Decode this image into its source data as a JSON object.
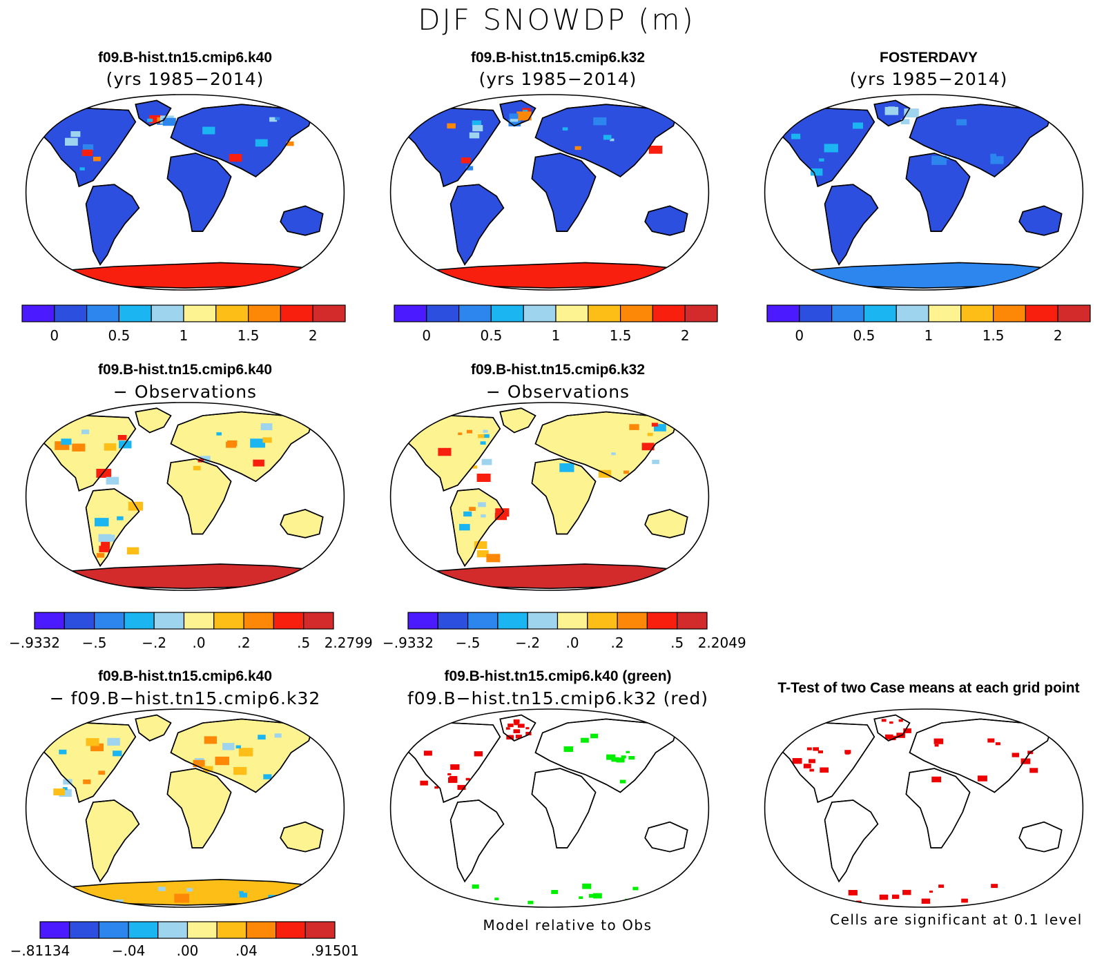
{
  "title": "DJF SNOWDP (m)",
  "palettes": {
    "seq": [
      "#4b1aff",
      "#2d4fe0",
      "#2c86ee",
      "#1bb6f2",
      "#9fd4ee",
      "#fdf391",
      "#fdbf17",
      "#fd8808",
      "#f81f0f",
      "#d32b2b"
    ],
    "ocean": "#ffffff",
    "land_outline": "#000000"
  },
  "panels": [
    {
      "id": "k40",
      "title": "f09.B-hist.tn15.cmip6.k40",
      "subtitle": "(yrs 1985−2014)",
      "fill": "#2d4fe0",
      "polar": "#f81f0f",
      "accents": "seq"
    },
    {
      "id": "k32",
      "title": "f09.B-hist.tn15.cmip6.k32",
      "subtitle": "(yrs 1985−2014)",
      "fill": "#2d4fe0",
      "polar": "#f81f0f",
      "accents": "seq"
    },
    {
      "id": "obs",
      "title": "FOSTERDAVY",
      "subtitle": "(yrs 1985−2014)",
      "fill": "#2d4fe0",
      "polar": "#2c86ee",
      "accents": "obs"
    },
    {
      "id": "k40-obs",
      "title": "f09.B-hist.tn15.cmip6.k40",
      "subtitle": "− Observations",
      "fill": "#fdf391",
      "polar": "#d32b2b",
      "accents": "diff"
    },
    {
      "id": "k32-obs",
      "title": "f09.B-hist.tn15.cmip6.k32",
      "subtitle": "− Observations",
      "fill": "#fdf391",
      "polar": "#d32b2b",
      "accents": "diff"
    },
    {
      "id": "k40-k32",
      "title": "f09.B-hist.tn15.cmip6.k40",
      "subtitle": "− f09.B−hist.tn15.cmip6.k32",
      "fill": "#fdf391",
      "polar": "#fdbf17",
      "accents": "diff2"
    },
    {
      "id": "rel",
      "title": "f09.B-hist.tn15.cmip6.k40 (green)",
      "subtitle": "f09.B−hist.tn15.cmip6.k32 (red)",
      "fill": "#ffffff",
      "polar": "#ffffff",
      "accents": "rel"
    },
    {
      "id": "ttest",
      "title": "T-Test of two Case means at each grid point",
      "subtitle": "",
      "fill": "#ffffff",
      "polar": "#ffffff",
      "accents": "ttest"
    }
  ],
  "colorbars": [
    {
      "labels": [
        "0",
        "0.5",
        "1",
        "1.5",
        "2"
      ]
    },
    {
      "labels": [
        "0",
        "0.5",
        "1",
        "1.5",
        "2"
      ]
    },
    {
      "labels": [
        "0",
        "0.5",
        "1",
        "1.5",
        "2"
      ]
    },
    {
      "labels": [
        "−.9332",
        "−.5",
        "−.2",
        ".0",
        ".2",
        ".5",
        "2.2799"
      ]
    },
    {
      "labels": [
        "−.9332",
        "−.5",
        "−.2",
        ".0",
        ".2",
        ".5",
        "2.2049"
      ]
    },
    {
      "labels": [
        "−.81134",
        "−.04",
        ".00",
        ".04",
        ".91501"
      ]
    }
  ],
  "footnotes": {
    "relative": "Model relative to Obs",
    "significance": "Cells are significant at 0.1 level"
  },
  "chart_data": {
    "type": "heatmap",
    "title": "DJF SNOWDP (m)",
    "variable": "SNOWDP",
    "units": "m",
    "season": "DJF",
    "projection": "Robinson world maps",
    "panels": [
      {
        "name": "f09.B-hist.tn15.cmip6.k40",
        "period": "1985−2014",
        "colorbar_ticks": [
          0,
          0.5,
          1,
          1.5,
          2
        ]
      },
      {
        "name": "f09.B-hist.tn15.cmip6.k32",
        "period": "1985−2014",
        "colorbar_ticks": [
          0,
          0.5,
          1,
          1.5,
          2
        ]
      },
      {
        "name": "FOSTERDAVY",
        "period": "1985−2014",
        "colorbar_ticks": [
          0,
          0.5,
          1,
          1.5,
          2
        ]
      },
      {
        "name": "f09.B-hist.tn15.cmip6.k40 − Observations",
        "colorbar_ticks": [
          -0.9332,
          -0.5,
          -0.2,
          0.0,
          0.2,
          0.5,
          2.2799
        ]
      },
      {
        "name": "f09.B-hist.tn15.cmip6.k32 − Observations",
        "colorbar_ticks": [
          -0.9332,
          -0.5,
          -0.2,
          0.0,
          0.2,
          0.5,
          2.2049
        ]
      },
      {
        "name": "f09.B-hist.tn15.cmip6.k40 − f09.B-hist.tn15.cmip6.k32",
        "colorbar_ticks": [
          -0.81134,
          -0.04,
          0.0,
          0.04,
          0.91501
        ]
      },
      {
        "name": "f09.B-hist.tn15.cmip6.k40 (green) / f09.B-hist.tn15.cmip6.k32 (red)",
        "note": "Model relative to Obs"
      },
      {
        "name": "T-Test of two Case means at each grid point",
        "note": "Cells are significant at 0.1 level"
      }
    ],
    "colorbar_colors": 10
  }
}
